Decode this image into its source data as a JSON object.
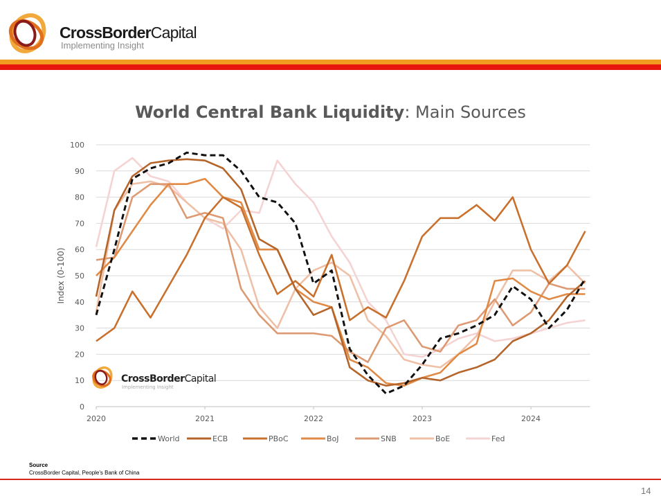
{
  "header": {
    "brand_bold": "CrossBorder",
    "brand_light": "Capital",
    "tagline": "Implementing Insight",
    "colors": {
      "orange_band": "#f29a1f",
      "red_band": "#e8150f"
    }
  },
  "chart_data": {
    "type": "line",
    "title_bold": "World Central Bank Liquidity",
    "title_rest": ": Main Sources",
    "xlabel": "",
    "ylabel": "Index (0-100)",
    "ylim": [
      0,
      100
    ],
    "yticks": [
      "0",
      "10",
      "20",
      "30",
      "40",
      "50",
      "60",
      "70",
      "80",
      "90",
      "100"
    ],
    "xticks": [
      "2020",
      "2021",
      "2022",
      "2023",
      "2024"
    ],
    "xlim": [
      "2020-01",
      "2024-07"
    ],
    "grid": true,
    "legend_position": "bottom",
    "x": [
      "2020-01",
      "2020-03",
      "2020-05",
      "2020-07",
      "2020-09",
      "2020-11",
      "2021-01",
      "2021-03",
      "2021-05",
      "2021-07",
      "2021-09",
      "2021-11",
      "2022-01",
      "2022-03",
      "2022-05",
      "2022-07",
      "2022-09",
      "2022-11",
      "2023-01",
      "2023-03",
      "2023-05",
      "2023-07",
      "2023-09",
      "2023-11",
      "2024-01",
      "2024-03",
      "2024-05",
      "2024-07"
    ],
    "series": [
      {
        "name": "World",
        "color": "#111111",
        "dashed": true,
        "values": [
          35,
          60,
          87,
          91,
          93,
          97,
          96,
          96,
          90,
          80,
          78,
          70,
          47,
          52,
          22,
          12,
          5,
          8,
          16,
          26,
          28,
          31,
          35,
          46,
          41,
          30,
          37,
          49
        ]
      },
      {
        "name": "ECB",
        "color": "#b5652a",
        "dashed": false,
        "values": [
          42,
          75,
          88,
          93,
          94,
          94.5,
          94,
          91,
          83,
          64,
          60,
          45,
          35,
          38,
          15,
          10,
          8,
          9,
          11,
          10,
          13,
          15,
          18,
          25,
          28,
          33,
          42,
          48
        ]
      },
      {
        "name": "PBoC",
        "color": "#c8702c",
        "dashed": false,
        "values": [
          25,
          30,
          44,
          34,
          46,
          58,
          72,
          80,
          76,
          58,
          43,
          48,
          42,
          58,
          33,
          38,
          34,
          48,
          65,
          72,
          72,
          77,
          71,
          80,
          60,
          47,
          54,
          67
        ]
      },
      {
        "name": "BoJ",
        "color": "#e08a45",
        "dashed": false,
        "values": [
          50,
          57,
          67,
          77,
          85,
          85,
          87,
          80,
          78,
          60,
          60,
          45,
          40,
          38,
          18,
          15,
          9,
          8,
          11,
          13,
          20,
          24,
          48,
          49,
          44,
          41,
          43,
          43
        ]
      },
      {
        "name": "SNB",
        "color": "#dd9a72",
        "dashed": false,
        "values": [
          56,
          57,
          80,
          85,
          85,
          72,
          74,
          72,
          45,
          35,
          28,
          28,
          28,
          27,
          21,
          17,
          30,
          33,
          23,
          21,
          31,
          33,
          41,
          31,
          36,
          47,
          45,
          45
        ]
      },
      {
        "name": "BoE",
        "color": "#efc0a6",
        "dashed": false,
        "values": [
          36,
          75,
          85,
          86,
          84,
          78,
          72,
          70,
          60,
          38,
          30,
          45,
          52,
          55,
          50,
          33,
          27,
          18,
          16,
          15,
          20,
          27,
          40,
          52,
          52,
          48,
          54,
          47
        ]
      },
      {
        "name": "Fed",
        "color": "#f5d3d3",
        "dashed": false,
        "values": [
          61,
          90,
          95,
          88,
          86,
          78,
          72,
          68,
          75,
          74,
          94,
          85,
          78,
          65,
          55,
          40,
          33,
          20,
          19,
          22,
          26,
          28,
          25,
          26,
          28,
          30,
          32,
          33
        ]
      }
    ],
    "watermark": {
      "brand_bold": "CrossBorder",
      "brand_light": "Capital",
      "tagline": "Implementing Insight"
    }
  },
  "footer": {
    "source_label": "Source",
    "source_text": "CrossBorder Capital, People's Bank of China",
    "page_number": "14"
  }
}
